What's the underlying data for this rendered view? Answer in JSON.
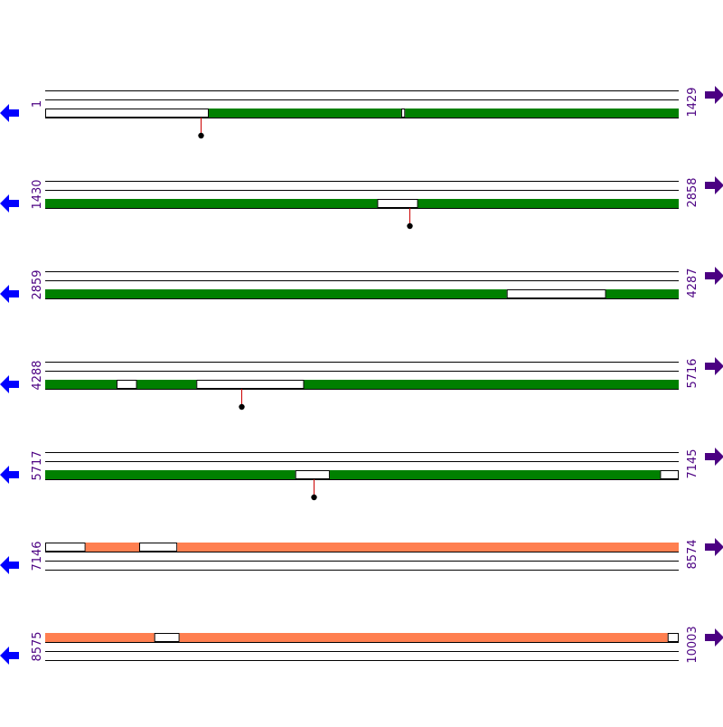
{
  "colors": {
    "background": "#ffffff",
    "track_line": "#000000",
    "feature_primary": "#008000",
    "feature_secondary": "#ff7f50",
    "gap_fill": "#ffffff",
    "marker_stem": "#cc0000",
    "marker_head": "#000000",
    "left_arrow": "#0000ff",
    "right_arrow": "#4b0082",
    "coord_label": "#4b0082"
  },
  "icons": {
    "left": "left-arrow-icon",
    "right": "right-arrow-icon"
  },
  "rows": [
    {
      "start": "1",
      "end": "1429",
      "start_num": 1,
      "end_num": 1429,
      "feature_track": 3,
      "color": "feature_primary",
      "segments": [
        [
          1,
          369
        ],
        [
          370,
          803
        ],
        [
          804,
          812
        ],
        [
          813,
          1429
        ]
      ],
      "segment_kinds": [
        "gap",
        "bar",
        "gap",
        "bar"
      ],
      "markers": [
        352
      ]
    },
    {
      "start": "1430",
      "end": "2858",
      "start_num": 1430,
      "end_num": 2858,
      "feature_track": 3,
      "color": "feature_primary",
      "segments": [
        [
          1430,
          2178
        ],
        [
          2179,
          2270
        ],
        [
          2271,
          2858
        ]
      ],
      "segment_kinds": [
        "bar",
        "gap",
        "bar"
      ],
      "markers": [
        2251
      ]
    },
    {
      "start": "2859",
      "end": "4287",
      "start_num": 2859,
      "end_num": 4287,
      "feature_track": 3,
      "color": "feature_primary",
      "segments": [
        [
          2859,
          3899
        ],
        [
          3900,
          4123
        ],
        [
          4124,
          4287
        ]
      ],
      "segment_kinds": [
        "bar",
        "gap",
        "bar"
      ],
      "markers": []
    },
    {
      "start": "4288",
      "end": "5716",
      "start_num": 4288,
      "end_num": 5716,
      "feature_track": 3,
      "color": "feature_primary",
      "segments": [
        [
          4288,
          4448
        ],
        [
          4449,
          4494
        ],
        [
          4495,
          4628
        ],
        [
          4629,
          4871
        ],
        [
          4872,
          5716
        ]
      ],
      "segment_kinds": [
        "bar",
        "gap",
        "bar",
        "gap",
        "bar"
      ],
      "markers": [
        4731
      ]
    },
    {
      "start": "5717",
      "end": "7145",
      "start_num": 5717,
      "end_num": 7145,
      "feature_track": 3,
      "color": "feature_primary",
      "segments": [
        [
          5717,
          6280
        ],
        [
          6281,
          6358
        ],
        [
          6359,
          7103
        ],
        [
          7104,
          7145
        ]
      ],
      "segment_kinds": [
        "bar",
        "gap",
        "bar",
        "gap"
      ],
      "markers": [
        6322
      ]
    },
    {
      "start": "7146",
      "end": "8574",
      "start_num": 7146,
      "end_num": 8574,
      "feature_track": 1,
      "color": "feature_secondary",
      "segments": [
        [
          7146,
          7236
        ],
        [
          7237,
          7357
        ],
        [
          7358,
          7443
        ],
        [
          7444,
          8574
        ]
      ],
      "segment_kinds": [
        "gap",
        "bar",
        "gap",
        "bar"
      ],
      "markers": []
    },
    {
      "start": "8575",
      "end": "10003",
      "start_num": 8575,
      "end_num": 10003,
      "feature_track": 1,
      "color": "feature_secondary",
      "segments": [
        [
          8575,
          8820
        ],
        [
          8821,
          8877
        ],
        [
          8878,
          9978
        ],
        [
          9979,
          10003
        ]
      ],
      "segment_kinds": [
        "bar",
        "gap",
        "bar",
        "gap"
      ],
      "markers": []
    }
  ]
}
